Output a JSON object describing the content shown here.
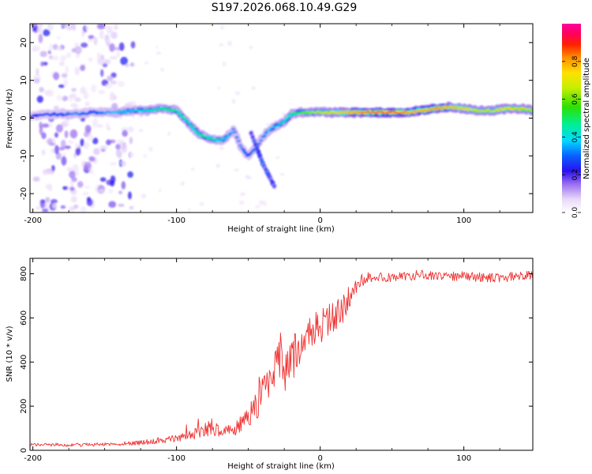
{
  "title": "S197.2026.068.10.49.G29",
  "top_panel": {
    "xlabel": "Height of straight line (km)",
    "ylabel": "Frequency (Hz)",
    "colorbar_label": "Normalized spectral amplitude"
  },
  "bottom_panel": {
    "xlabel": "Height of straight line (km)",
    "ylabel": "SNR (10 * v/v)"
  },
  "chart_data": [
    {
      "type": "heatmap",
      "id": "spectrogram",
      "xlabel": "Height of straight line (km)",
      "ylabel": "Frequency (Hz)",
      "xlim": [
        -202,
        148
      ],
      "ylim": [
        -25,
        25
      ],
      "xticks": [
        -200,
        -100,
        0,
        100
      ],
      "yticks": [
        -20,
        -10,
        0,
        10,
        20
      ],
      "colormap": "rainbow (white→violet→blue→cyan→green→yellow→orange→red→magenta)",
      "colorbar": {
        "label": "Normalized spectral amplitude",
        "range": [
          0,
          1
        ],
        "ticks": [
          0.0,
          0.2,
          0.4,
          0.6,
          0.8
        ]
      },
      "ridge": {
        "description": "dominant frequency track (Hz) vs height (km) with approximate normalized amplitude",
        "x": [
          -200,
          -190,
          -180,
          -170,
          -160,
          -150,
          -140,
          -130,
          -120,
          -110,
          -100,
          -95,
          -90,
          -85,
          -80,
          -75,
          -70,
          -65,
          -60,
          -55,
          -50,
          -45,
          -40,
          -35,
          -30,
          -25,
          -20,
          -15,
          -10,
          -5,
          0,
          10,
          20,
          30,
          40,
          50,
          60,
          70,
          80,
          90,
          100,
          110,
          120,
          130,
          140,
          148
        ],
        "frequency": [
          0.5,
          1,
          1,
          1,
          1.5,
          1.5,
          1.5,
          2,
          2,
          2.5,
          2,
          0,
          -2,
          -4,
          -5,
          -5.5,
          -6,
          -5,
          -3,
          -8,
          -10,
          -8,
          -5,
          -3,
          -2,
          -1,
          1,
          1.5,
          1.5,
          1.5,
          1.5,
          1.5,
          1.5,
          1.5,
          1.5,
          1.5,
          1.5,
          2,
          2.5,
          3,
          2.5,
          2,
          2,
          2.5,
          2.5,
          2
        ],
        "amplitude": [
          0.25,
          0.3,
          0.3,
          0.35,
          0.3,
          0.35,
          0.4,
          0.4,
          0.45,
          0.5,
          0.5,
          0.5,
          0.45,
          0.5,
          0.5,
          0.45,
          0.45,
          0.4,
          0.35,
          0.35,
          0.3,
          0.35,
          0.35,
          0.4,
          0.4,
          0.45,
          0.5,
          0.55,
          0.6,
          0.65,
          0.65,
          0.75,
          0.8,
          0.85,
          0.9,
          0.95,
          0.85,
          0.8,
          0.85,
          0.8,
          0.75,
          0.7,
          0.7,
          0.75,
          0.7,
          0.7
        ]
      },
      "secondary_branch": {
        "description": "descending branch (Hz) vs height (km)",
        "x": [
          -48,
          -44,
          -40,
          -36,
          -32
        ],
        "frequency": [
          -4,
          -8,
          -12,
          -15,
          -18
        ]
      },
      "scatter_region": {
        "description": "low-amplitude noise speckle",
        "x_range": [
          -200,
          -130
        ],
        "y_range": [
          -25,
          25
        ],
        "amplitude_range": [
          0.0,
          0.2
        ]
      }
    },
    {
      "type": "line",
      "id": "snr",
      "xlabel": "Height of straight line (km)",
      "ylabel": "SNR (10 * v/v)",
      "xlim": [
        -202,
        148
      ],
      "ylim": [
        0,
        870
      ],
      "xticks": [
        -200,
        -100,
        0,
        100
      ],
      "yticks": [
        0,
        200,
        400,
        600,
        800
      ],
      "color": "#f03030",
      "series": [
        {
          "name": "SNR envelope",
          "x": [
            -202,
            -190,
            -180,
            -170,
            -160,
            -150,
            -140,
            -130,
            -120,
            -110,
            -100,
            -90,
            -80,
            -75,
            -70,
            -60,
            -50,
            -45,
            -40,
            -35,
            -30,
            -28,
            -25,
            -20,
            -15,
            -10,
            -5,
            0,
            5,
            10,
            15,
            20,
            25,
            30,
            35,
            40,
            50,
            60,
            70,
            80,
            90,
            100,
            110,
            120,
            130,
            140,
            148
          ],
          "mean": [
            25,
            25,
            25,
            25,
            25,
            28,
            28,
            32,
            38,
            45,
            55,
            70,
            90,
            110,
            80,
            95,
            140,
            200,
            260,
            330,
            380,
            420,
            350,
            410,
            460,
            500,
            530,
            560,
            590,
            600,
            630,
            690,
            740,
            770,
            780,
            785,
            785,
            790,
            795,
            795,
            790,
            790,
            785,
            780,
            785,
            790,
            790
          ],
          "swing": [
            12,
            12,
            14,
            14,
            14,
            14,
            16,
            18,
            22,
            26,
            30,
            40,
            60,
            70,
            50,
            60,
            90,
            130,
            140,
            150,
            150,
            250,
            170,
            180,
            180,
            170,
            160,
            150,
            150,
            140,
            130,
            100,
            70,
            55,
            45,
            40,
            40,
            40,
            40,
            40,
            40,
            40,
            40,
            40,
            40,
            40,
            40
          ]
        }
      ]
    }
  ]
}
